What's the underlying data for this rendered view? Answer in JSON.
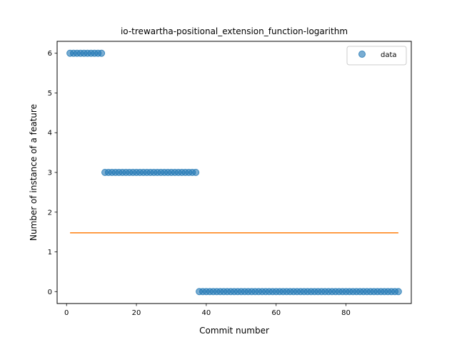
{
  "chart_data": {
    "type": "scatter",
    "title": "io-trewartha-positional_extension_function-logarithm",
    "xlabel": "Commit number",
    "ylabel": "Number of instance of a feature",
    "xlim": [
      -2.7,
      98.7
    ],
    "ylim": [
      -0.3,
      6.3
    ],
    "xticks": [
      0,
      20,
      40,
      60,
      80
    ],
    "yticks": [
      0,
      1,
      2,
      3,
      4,
      5,
      6
    ],
    "grid": false,
    "legend": {
      "position": "top-right",
      "entries": [
        "data"
      ]
    },
    "series": [
      {
        "name": "data",
        "kind": "scatter",
        "color": "#1f77b4",
        "segments": [
          {
            "x_start": 1,
            "x_end": 10,
            "y": 6
          },
          {
            "x_start": 11,
            "x_end": 37,
            "y": 3
          },
          {
            "x_start": 38,
            "x_end": 95,
            "y": 0
          }
        ]
      },
      {
        "name": "",
        "kind": "line",
        "color": "#ff7f0e",
        "x": [
          1,
          95
        ],
        "y": [
          1.48,
          1.48
        ]
      }
    ]
  }
}
